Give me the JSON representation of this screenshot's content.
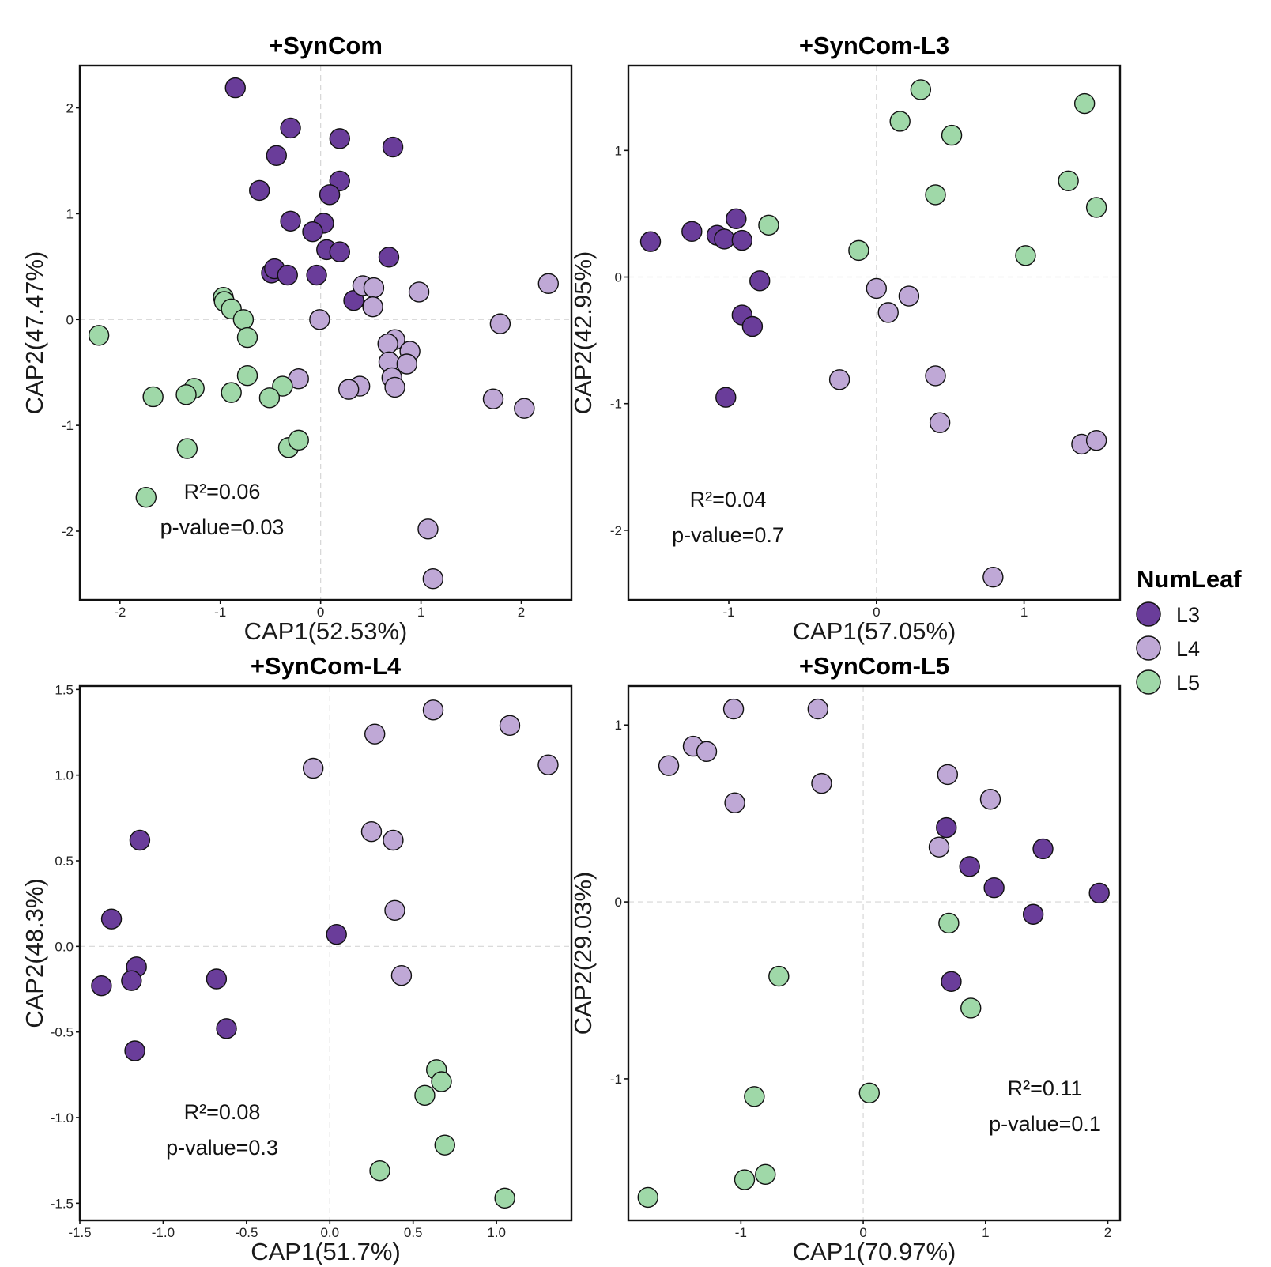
{
  "chart_data": [
    {
      "type": "scatter",
      "title": "+SynCom",
      "xlabel": "CAP1(52.53%)",
      "ylabel": "CAP2(47.47%)",
      "xlim": [
        -2.4,
        2.5
      ],
      "ylim": [
        -2.65,
        2.4
      ],
      "xticks": [
        {
          "v": -2,
          "label": "-2"
        },
        {
          "v": -1,
          "label": "-1"
        },
        {
          "v": 0,
          "label": "0"
        },
        {
          "v": 1,
          "label": "1"
        },
        {
          "v": 2,
          "label": "2"
        }
      ],
      "yticks": [
        {
          "v": -2,
          "label": "-2"
        },
        {
          "v": -1,
          "label": "-1"
        },
        {
          "v": 0,
          "label": "0"
        },
        {
          "v": 1,
          "label": "1"
        },
        {
          "v": 2,
          "label": "2"
        }
      ],
      "annotation": {
        "r2": "R²=0.06",
        "p": "p-value=0.03",
        "position": "bottom-left"
      },
      "series": [
        {
          "name": "L3",
          "points": [
            [
              -0.85,
              2.19
            ],
            [
              -0.3,
              1.81
            ],
            [
              0.19,
              1.71
            ],
            [
              -0.44,
              1.55
            ],
            [
              0.72,
              1.63
            ],
            [
              0.19,
              1.31
            ],
            [
              -0.61,
              1.22
            ],
            [
              0.09,
              1.18
            ],
            [
              -0.3,
              0.93
            ],
            [
              0.03,
              0.91
            ],
            [
              -0.08,
              0.83
            ],
            [
              0.06,
              0.66
            ],
            [
              0.19,
              0.64
            ],
            [
              0.68,
              0.59
            ],
            [
              -0.49,
              0.44
            ],
            [
              -0.46,
              0.48
            ],
            [
              -0.33,
              0.42
            ],
            [
              -0.04,
              0.42
            ],
            [
              0.33,
              0.18
            ]
          ]
        },
        {
          "name": "L4",
          "points": [
            [
              0.42,
              0.32
            ],
            [
              0.53,
              0.3
            ],
            [
              0.98,
              0.26
            ],
            [
              2.27,
              0.34
            ],
            [
              0.52,
              0.12
            ],
            [
              -0.01,
              0.0
            ],
            [
              0.74,
              -0.19
            ],
            [
              0.67,
              -0.23
            ],
            [
              0.89,
              -0.3
            ],
            [
              0.68,
              -0.4
            ],
            [
              0.86,
              -0.42
            ],
            [
              1.79,
              -0.04
            ],
            [
              -0.22,
              -0.56
            ],
            [
              0.39,
              -0.63
            ],
            [
              0.28,
              -0.66
            ],
            [
              0.71,
              -0.55
            ],
            [
              0.74,
              -0.64
            ],
            [
              1.72,
              -0.75
            ],
            [
              2.03,
              -0.84
            ],
            [
              1.07,
              -1.98
            ],
            [
              1.12,
              -2.45
            ]
          ]
        },
        {
          "name": "L5",
          "points": [
            [
              -0.97,
              0.21
            ],
            [
              -0.96,
              0.17
            ],
            [
              -0.89,
              0.1
            ],
            [
              -0.77,
              0.0
            ],
            [
              -0.73,
              -0.17
            ],
            [
              -2.21,
              -0.15
            ],
            [
              -0.73,
              -0.53
            ],
            [
              -0.38,
              -0.63
            ],
            [
              -0.51,
              -0.74
            ],
            [
              -0.89,
              -0.69
            ],
            [
              -1.26,
              -0.65
            ],
            [
              -1.34,
              -0.71
            ],
            [
              -1.67,
              -0.73
            ],
            [
              -1.33,
              -1.22
            ],
            [
              -0.32,
              -1.21
            ],
            [
              -0.22,
              -1.14
            ],
            [
              -1.74,
              -1.68
            ]
          ]
        }
      ]
    },
    {
      "type": "scatter",
      "title": "+SynCom-L3",
      "xlabel": "CAP1(57.05%)",
      "ylabel": "CAP2(42.95%)",
      "xlim": [
        -1.68,
        1.65
      ],
      "ylim": [
        -2.55,
        1.67
      ],
      "xticks": [
        {
          "v": -1,
          "label": "-1"
        },
        {
          "v": 0,
          "label": "0"
        },
        {
          "v": 1,
          "label": "1"
        }
      ],
      "yticks": [
        {
          "v": -2,
          "label": "-2"
        },
        {
          "v": -1,
          "label": "-1"
        },
        {
          "v": 0,
          "label": "0"
        },
        {
          "v": 1,
          "label": "1"
        }
      ],
      "annotation": {
        "r2": "R²=0.04",
        "p": "p-value=0.7",
        "position": "bottom-left"
      },
      "series": [
        {
          "name": "L3",
          "points": [
            [
              -1.53,
              0.28
            ],
            [
              -1.25,
              0.36
            ],
            [
              -1.08,
              0.33
            ],
            [
              -1.03,
              0.3
            ],
            [
              -0.95,
              0.46
            ],
            [
              -0.91,
              0.29
            ],
            [
              -0.79,
              -0.03
            ],
            [
              -0.91,
              -0.3
            ],
            [
              -0.84,
              -0.39
            ],
            [
              -1.02,
              -0.95
            ]
          ]
        },
        {
          "name": "L4",
          "points": [
            [
              0.0,
              -0.09
            ],
            [
              0.22,
              -0.15
            ],
            [
              0.08,
              -0.28
            ],
            [
              -0.25,
              -0.81
            ],
            [
              0.4,
              -0.78
            ],
            [
              0.43,
              -1.15
            ],
            [
              1.39,
              -1.32
            ],
            [
              1.49,
              -1.29
            ],
            [
              0.79,
              -2.37
            ]
          ]
        },
        {
          "name": "L5",
          "points": [
            [
              0.3,
              1.48
            ],
            [
              0.16,
              1.23
            ],
            [
              0.51,
              1.12
            ],
            [
              1.41,
              1.37
            ],
            [
              1.3,
              0.76
            ],
            [
              1.49,
              0.55
            ],
            [
              0.4,
              0.65
            ],
            [
              -0.73,
              0.41
            ],
            [
              -0.12,
              0.21
            ],
            [
              1.01,
              0.17
            ]
          ]
        }
      ]
    },
    {
      "type": "scatter",
      "title": "+SynCom-L4",
      "xlabel": "CAP1(51.7%)",
      "ylabel": "CAP2(48.3%)",
      "xlim": [
        -1.5,
        1.45
      ],
      "ylim": [
        -1.6,
        1.52
      ],
      "xticks": [
        {
          "v": -1.5,
          "label": "-1.5"
        },
        {
          "v": -1.0,
          "label": "-1.0"
        },
        {
          "v": -0.5,
          "label": "-0.5"
        },
        {
          "v": 0.0,
          "label": "0.0"
        },
        {
          "v": 0.5,
          "label": "0.5"
        },
        {
          "v": 1.0,
          "label": "1.0"
        }
      ],
      "yticks": [
        {
          "v": -1.5,
          "label": "-1.5"
        },
        {
          "v": -1.0,
          "label": "-1.0"
        },
        {
          "v": -0.5,
          "label": "-0.5"
        },
        {
          "v": 0.0,
          "label": "0.0"
        },
        {
          "v": 0.5,
          "label": "0.5"
        },
        {
          "v": 1.0,
          "label": "1.0"
        },
        {
          "v": 1.5,
          "label": "1.5"
        }
      ],
      "annotation": {
        "r2": "R²=0.08",
        "p": "p-value=0.3",
        "position": "bottom-left"
      },
      "series": [
        {
          "name": "L3",
          "points": [
            [
              -1.14,
              0.62
            ],
            [
              -1.31,
              0.16
            ],
            [
              -1.16,
              -0.12
            ],
            [
              -1.19,
              -0.2
            ],
            [
              -1.37,
              -0.23
            ],
            [
              -0.68,
              -0.19
            ],
            [
              -0.62,
              -0.48
            ],
            [
              -1.17,
              -0.61
            ],
            [
              0.04,
              0.07
            ]
          ]
        },
        {
          "name": "L4",
          "points": [
            [
              0.62,
              1.38
            ],
            [
              0.27,
              1.24
            ],
            [
              1.08,
              1.29
            ],
            [
              1.31,
              1.06
            ],
            [
              -0.1,
              1.04
            ],
            [
              0.25,
              0.67
            ],
            [
              0.38,
              0.62
            ],
            [
              0.39,
              0.21
            ],
            [
              0.43,
              -0.17
            ]
          ]
        },
        {
          "name": "L5",
          "points": [
            [
              0.64,
              -0.72
            ],
            [
              0.67,
              -0.79
            ],
            [
              0.57,
              -0.87
            ],
            [
              0.69,
              -1.16
            ],
            [
              0.3,
              -1.31
            ],
            [
              1.05,
              -1.47
            ]
          ]
        }
      ]
    },
    {
      "type": "scatter",
      "title": "+SynCom-L5",
      "xlabel": "CAP1(70.97%)",
      "ylabel": "CAP2(29.03%)",
      "xlim": [
        -1.92,
        2.1
      ],
      "ylim": [
        -1.8,
        1.22
      ],
      "xticks": [
        {
          "v": -1,
          "label": "-1"
        },
        {
          "v": 0,
          "label": "0"
        },
        {
          "v": 1,
          "label": "1"
        },
        {
          "v": 2,
          "label": "2"
        }
      ],
      "yticks": [
        {
          "v": -1,
          "label": "-1"
        },
        {
          "v": 0,
          "label": "0"
        },
        {
          "v": 1,
          "label": "1"
        }
      ],
      "annotation": {
        "r2": "R²=0.11",
        "p": "p-value=0.1",
        "position": "bottom-right"
      },
      "series": [
        {
          "name": "L3",
          "points": [
            [
              0.68,
              0.42
            ],
            [
              0.87,
              0.2
            ],
            [
              1.07,
              0.08
            ],
            [
              1.47,
              0.3
            ],
            [
              1.93,
              0.05
            ],
            [
              1.39,
              -0.07
            ],
            [
              0.72,
              -0.45
            ]
          ]
        },
        {
          "name": "L4",
          "points": [
            [
              -1.06,
              1.09
            ],
            [
              -0.37,
              1.09
            ],
            [
              -1.39,
              0.88
            ],
            [
              -1.28,
              0.85
            ],
            [
              -1.59,
              0.77
            ],
            [
              -0.34,
              0.67
            ],
            [
              -1.05,
              0.56
            ],
            [
              0.69,
              0.72
            ],
            [
              1.04,
              0.58
            ],
            [
              0.62,
              0.31
            ]
          ]
        },
        {
          "name": "L5",
          "points": [
            [
              0.7,
              -0.12
            ],
            [
              -0.69,
              -0.42
            ],
            [
              0.88,
              -0.6
            ],
            [
              -0.89,
              -1.1
            ],
            [
              0.05,
              -1.08
            ],
            [
              -0.8,
              -1.54
            ],
            [
              -0.97,
              -1.57
            ],
            [
              -1.76,
              -1.67
            ]
          ]
        }
      ]
    }
  ],
  "legend": {
    "title": "NumLeaf",
    "position": "right",
    "items": [
      {
        "label": "L3",
        "color": "#6a3d9a"
      },
      {
        "label": "L4",
        "color": "#bfa8d6"
      },
      {
        "label": "L5",
        "color": "#9fd8a8"
      }
    ]
  },
  "colors": {
    "L3": "#6a3d9a",
    "L4": "#bfa8d6",
    "L5": "#9fd8a8"
  }
}
